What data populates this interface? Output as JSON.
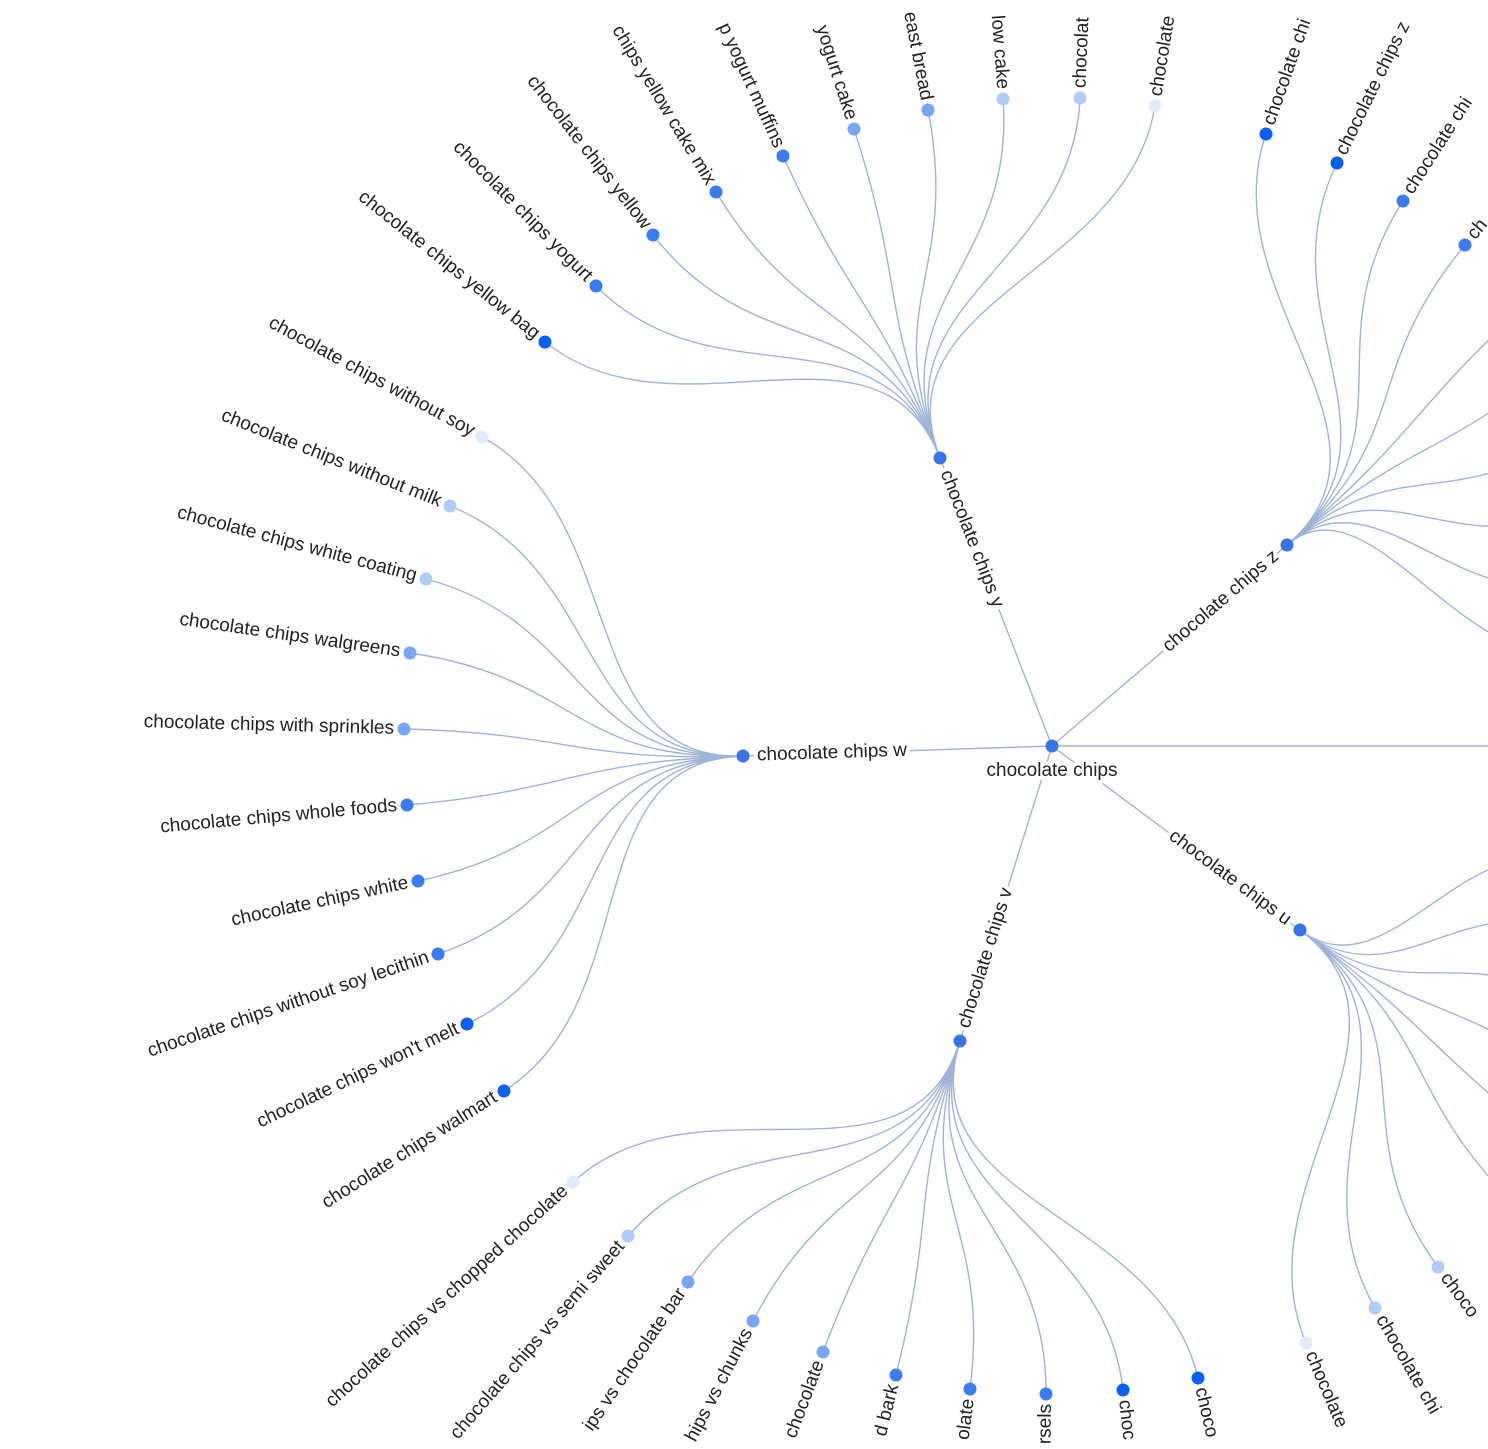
{
  "root": {
    "label": "chocolate chips"
  },
  "branches": [
    {
      "label": "chocolate chips y",
      "leaves": [
        {
          "label": "chocolate chips yellow bag"
        },
        {
          "label": "chocolate chips yogurt"
        },
        {
          "label": "chocolate chips yellow"
        },
        {
          "label": "chips yellow cake mix"
        },
        {
          "label": "p yogurt muffins"
        },
        {
          "label": "yogurt cake"
        },
        {
          "label": "east bread"
        },
        {
          "label": "low cake"
        },
        {
          "label": "chocolat"
        },
        {
          "label": "chocolate"
        }
      ]
    },
    {
      "label": "chocolate chips z",
      "leaves": [
        {
          "label": "chocolate chi"
        },
        {
          "label": "chocolate chips z"
        },
        {
          "label": "chocolate chi"
        },
        {
          "label": "ch"
        }
      ]
    },
    {
      "label": "chocolate chips u",
      "leaves": [
        {
          "label": "chocolate"
        },
        {
          "label": "chocolate chi"
        },
        {
          "label": "choco"
        }
      ]
    },
    {
      "label": "chocolate chips v",
      "leaves": [
        {
          "label": "chocolate chips vs chopped chocolate"
        },
        {
          "label": "chocolate chips vs semi sweet"
        },
        {
          "label": "ips vs chocolate bar"
        },
        {
          "label": "hips vs chunks"
        },
        {
          "label": "chocolate"
        },
        {
          "label": "d bark"
        },
        {
          "label": "olate"
        },
        {
          "label": "rsels"
        },
        {
          "label": "choc"
        },
        {
          "label": "choco"
        }
      ]
    },
    {
      "label": "chocolate chips w",
      "leaves": [
        {
          "label": "chocolate chips without soy"
        },
        {
          "label": "chocolate chips without milk"
        },
        {
          "label": "chocolate chips white coating"
        },
        {
          "label": "chocolate chips walgreens"
        },
        {
          "label": "chocolate chips with sprinkles"
        },
        {
          "label": "chocolate chips whole foods"
        },
        {
          "label": "chocolate chips white"
        },
        {
          "label": "chocolate chips without soy lecithin"
        },
        {
          "label": "chocolate chips won't melt"
        },
        {
          "label": "chocolate chips walmart"
        }
      ]
    }
  ]
}
